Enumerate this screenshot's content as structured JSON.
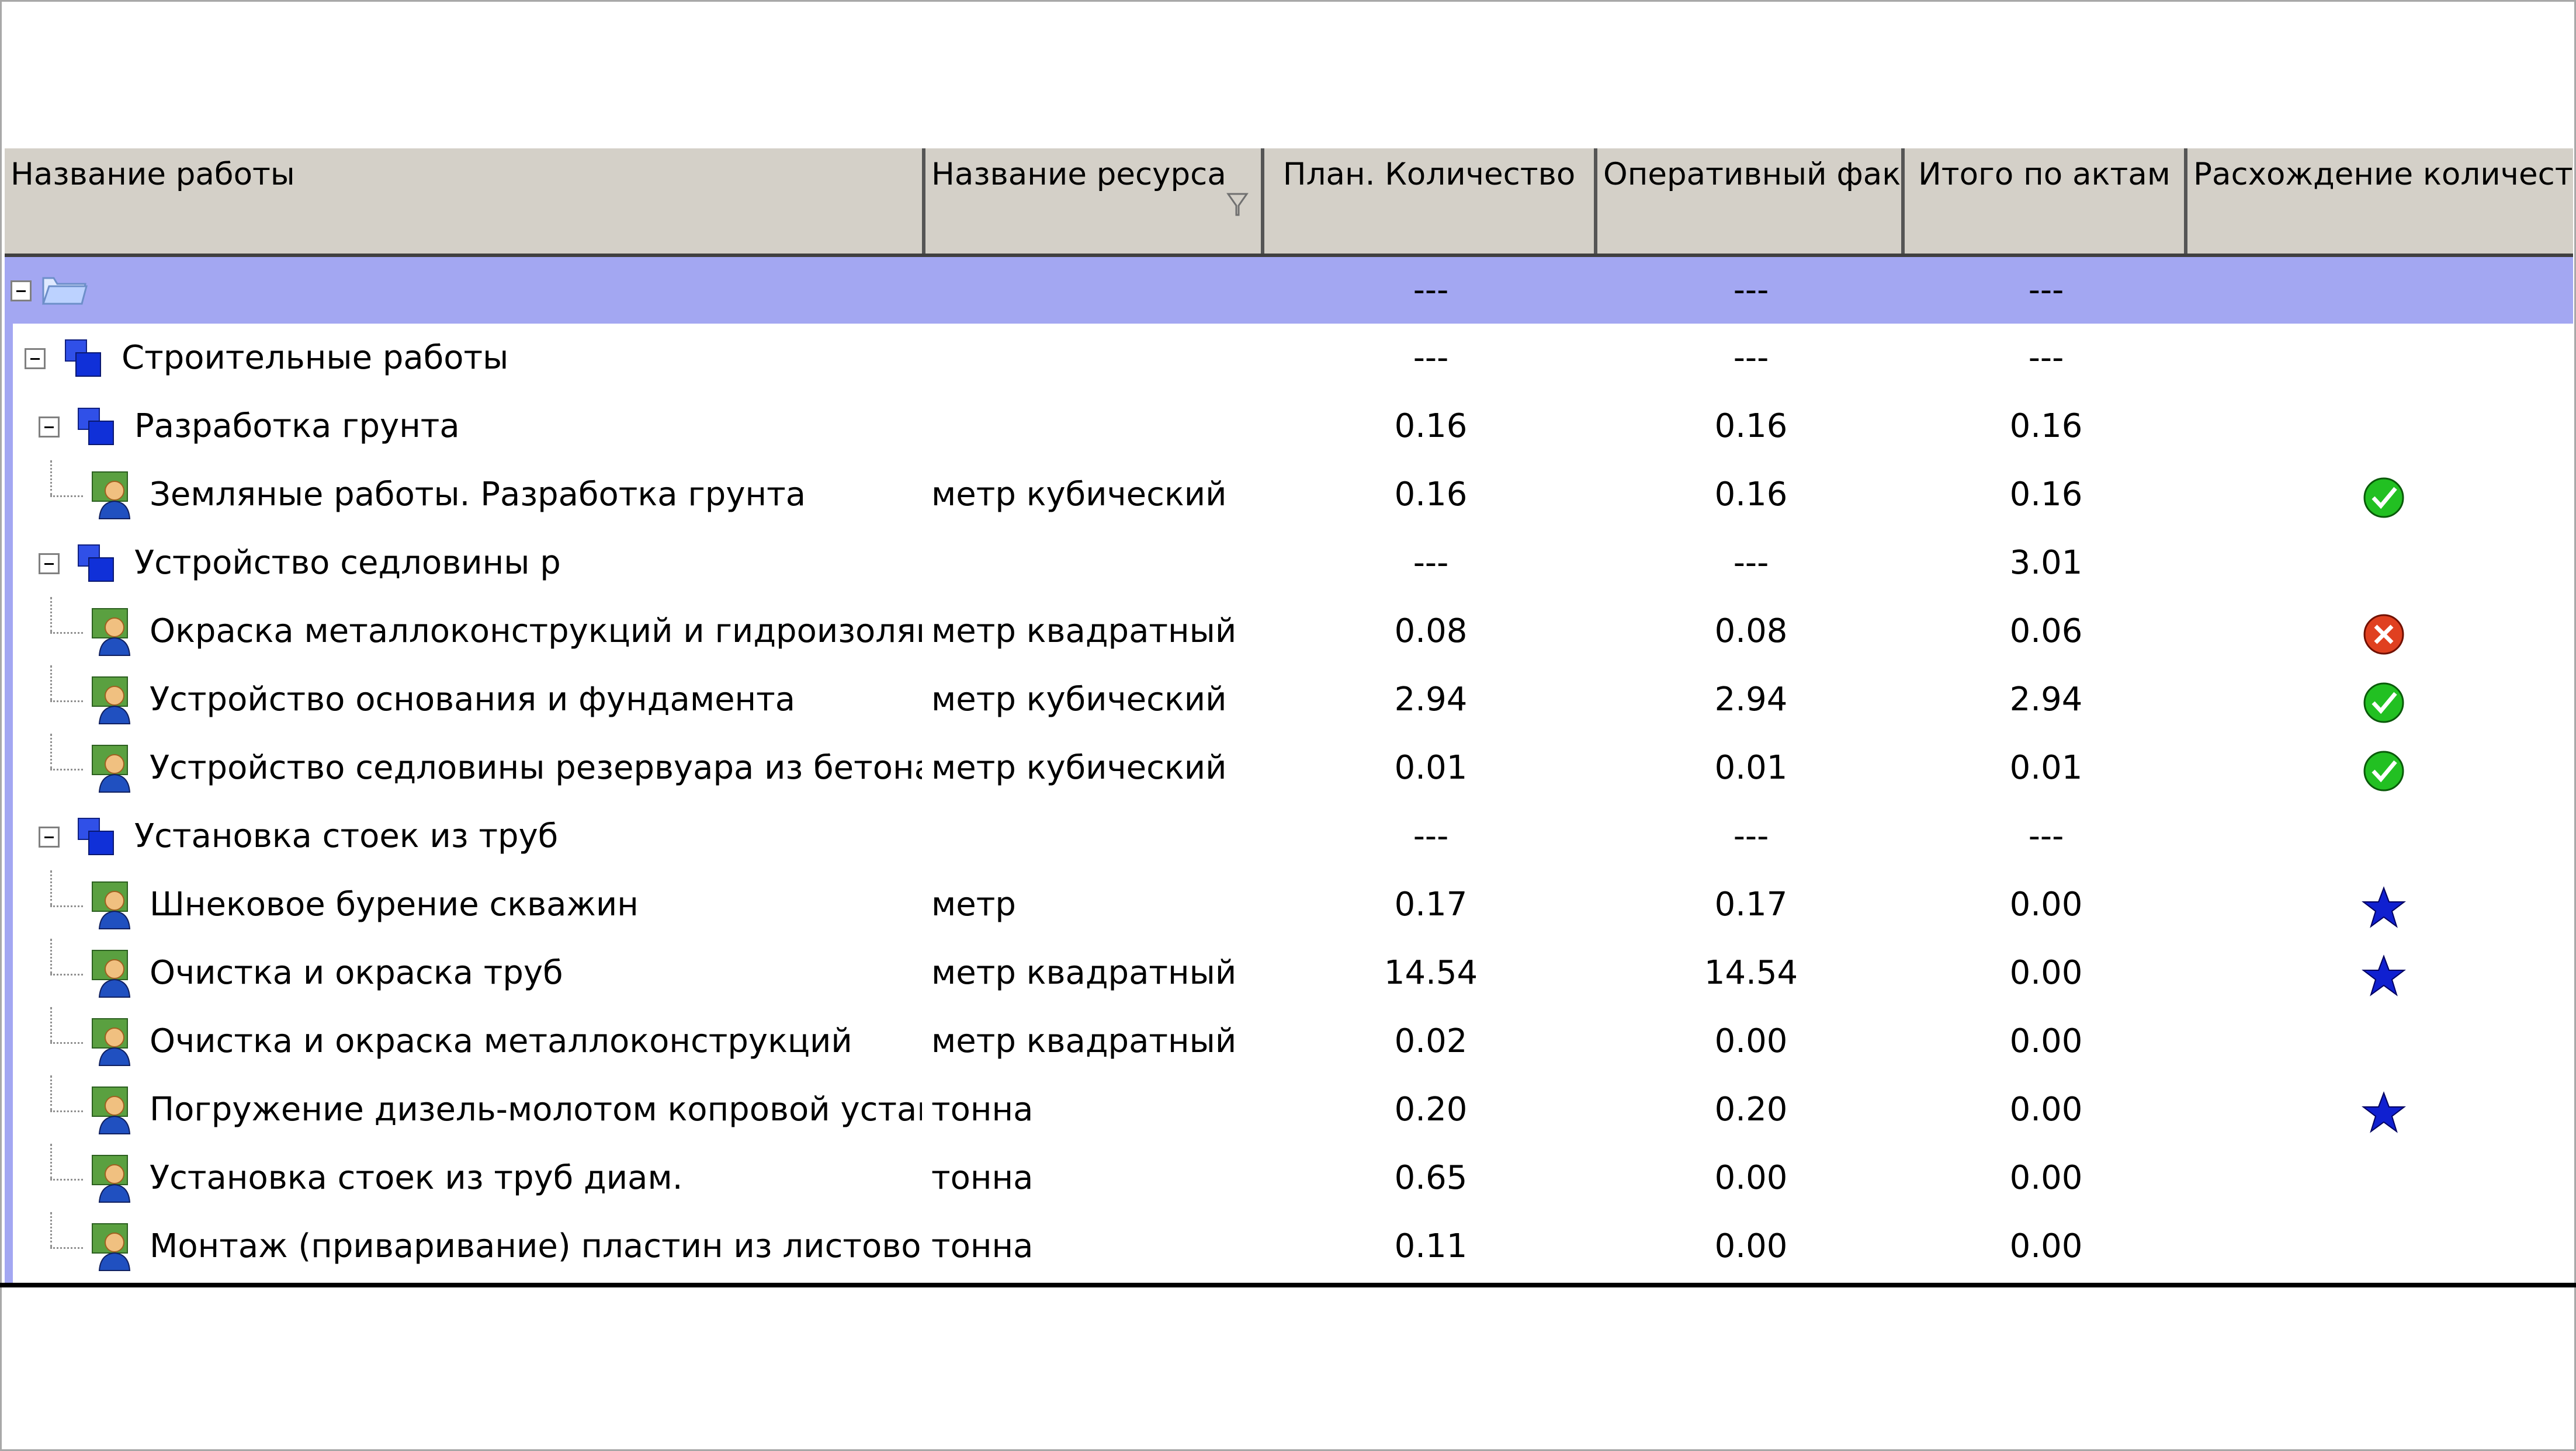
{
  "columns": {
    "work_name": "Название работы",
    "resource_name": "Название ресурса",
    "plan_qty": "План. Количество",
    "oper_fact": "Оперативный факт",
    "total_acts": "Итого по актам",
    "diff_qty": "Расхождение количества"
  },
  "group_row": {
    "plan": "---",
    "fact": "---",
    "acts": "---"
  },
  "rows": [
    {
      "level": 0,
      "type": "folder",
      "name": "Строительные работы",
      "resource": "",
      "plan": "---",
      "fact": "---",
      "acts": "---",
      "status": ""
    },
    {
      "level": 1,
      "type": "folder",
      "name": "Разработка грунта",
      "resource": "",
      "plan": "0.16",
      "fact": "0.16",
      "acts": "0.16",
      "status": ""
    },
    {
      "level": 2,
      "type": "item",
      "name": "Земляные работы. Разработка грунта",
      "resource": "метр кубический",
      "plan": "0.16",
      "fact": "0.16",
      "acts": "0.16",
      "status": "ok"
    },
    {
      "level": 1,
      "type": "folder",
      "name": "Устройство седловины р",
      "resource": "",
      "plan": "---",
      "fact": "---",
      "acts": "3.01",
      "status": ""
    },
    {
      "level": 2,
      "type": "item",
      "name": "Окраска металлоконструкций и гидроизоляция",
      "resource": "метр квадратный",
      "plan": "0.08",
      "fact": "0.08",
      "acts": "0.06",
      "status": "error"
    },
    {
      "level": 2,
      "type": "item",
      "name": "Устройство основания и фундамента",
      "resource": "метр кубический",
      "plan": "2.94",
      "fact": "2.94",
      "acts": "2.94",
      "status": "ok"
    },
    {
      "level": 2,
      "type": "item",
      "name": "Устройство седловины резервуара из бетона",
      "resource": "метр кубический",
      "plan": "0.01",
      "fact": "0.01",
      "acts": "0.01",
      "status": "ok"
    },
    {
      "level": 1,
      "type": "folder",
      "name": "Установка стоек из труб",
      "resource": "",
      "plan": "---",
      "fact": "---",
      "acts": "---",
      "status": ""
    },
    {
      "level": 2,
      "type": "item",
      "name": "Шнековое бурение скважин",
      "resource": "метр",
      "plan": "0.17",
      "fact": "0.17",
      "acts": "0.00",
      "status": "star"
    },
    {
      "level": 2,
      "type": "item",
      "name": "Очистка и окраска труб",
      "resource": "метр квадратный",
      "plan": "14.54",
      "fact": "14.54",
      "acts": "0.00",
      "status": "star"
    },
    {
      "level": 2,
      "type": "item",
      "name": "Очистка и окраска металлоконструкций",
      "resource": "метр квадратный",
      "plan": "0.02",
      "fact": "0.00",
      "acts": "0.00",
      "status": ""
    },
    {
      "level": 2,
      "type": "item",
      "name": "Погружение дизель-молотом копровой установки ···",
      "resource": "тонна",
      "plan": "0.20",
      "fact": "0.20",
      "acts": "0.00",
      "status": "star"
    },
    {
      "level": 2,
      "type": "item",
      "name": "Установка стоек из труб диам.",
      "resource": "тонна",
      "plan": "0.65",
      "fact": "0.00",
      "acts": "0.00",
      "status": ""
    },
    {
      "level": 2,
      "type": "item",
      "name": "Монтаж (приваривание) пластин из листовой стали",
      "resource": "тонна",
      "plan": "0.11",
      "fact": "0.00",
      "acts": "0.00",
      "status": ""
    }
  ],
  "colors": {
    "header_bg": "#d4d0c8",
    "group_row_bg": "#a3a7f2",
    "ok": "#22c022",
    "error": "#e04020",
    "star": "#1020d0"
  },
  "icons": {
    "folder": "folder-icon",
    "group": "blue-squares-icon",
    "item": "resource-person-icon",
    "ok": "check-circle-icon",
    "error": "error-circle-icon",
    "star": "star-icon"
  }
}
